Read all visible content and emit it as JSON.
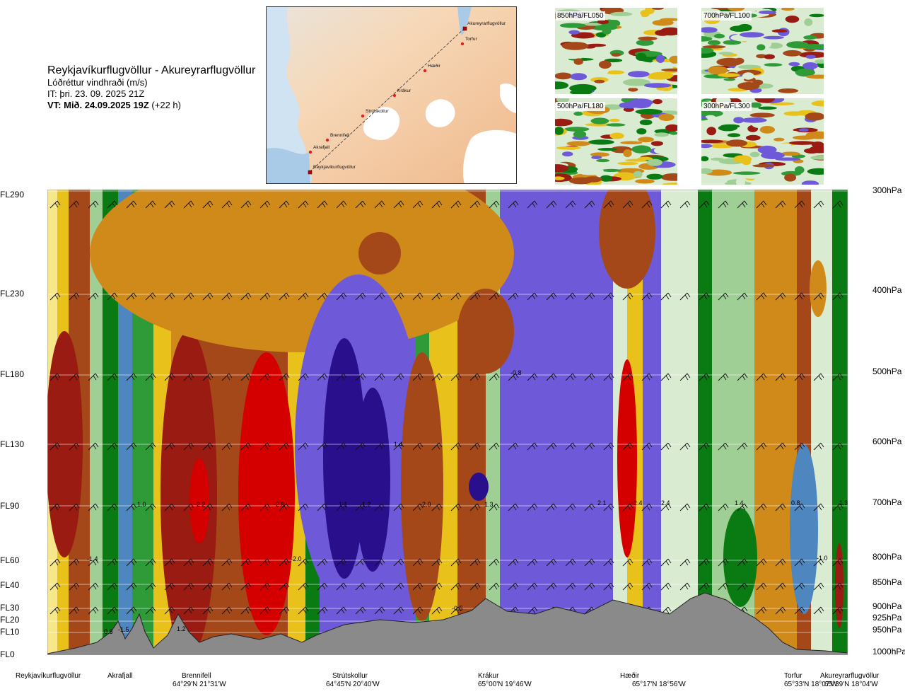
{
  "header": {
    "title": "Reykjavíkurflugvöllur - Akureyrarflugvöllur",
    "field": "Lóðréttur vindhraði (m/s)",
    "initial_time": "IT: þri. 23. 09. 2025 21Z",
    "valid_time_bold": "VT: Mið. 24.09.2025 19Z",
    "valid_time_offset": "(+22 h)"
  },
  "route_map": {
    "stations": [
      {
        "name": "Akureyrarflugvöllur",
        "kind": "airport"
      },
      {
        "name": "Torfur",
        "kind": "waypoint"
      },
      {
        "name": "Hæðir",
        "kind": "waypoint"
      },
      {
        "name": "Krákur",
        "kind": "waypoint"
      },
      {
        "name": "Strútskollur",
        "kind": "waypoint"
      },
      {
        "name": "Brennifell",
        "kind": "waypoint"
      },
      {
        "name": "Akrafjall",
        "kind": "waypoint"
      },
      {
        "name": "Reykjavíkurflugvöllur",
        "kind": "airport"
      }
    ]
  },
  "thumbnails": [
    {
      "label": "850hPa/FL050"
    },
    {
      "label": "700hPa/FL100"
    },
    {
      "label": "500hPa/FL180"
    },
    {
      "label": "300hPa/FL300"
    }
  ],
  "flight_levels": [
    "FL290",
    "FL230",
    "FL180",
    "FL130",
    "FL90",
    "FL60",
    "FL40",
    "FL30",
    "FL20",
    "FL10",
    "FL0"
  ],
  "pressure_levels": [
    "300hPa",
    "400hPa",
    "500hPa",
    "600hPa",
    "700hPa",
    "800hPa",
    "850hPa",
    "900hPa",
    "925hPa",
    "950hPa",
    "1000hPa"
  ],
  "locations": [
    {
      "name": "Reykjavíkurflugvöllur",
      "coord": ""
    },
    {
      "name": "Akrafjall",
      "coord": ""
    },
    {
      "name": "Brennifell",
      "coord": "64°29'N 21°31'W"
    },
    {
      "name": "Strútskollur",
      "coord": "64°45'N 20°40'W"
    },
    {
      "name": "Krákur",
      "coord": "65°00'N 19°46'W"
    },
    {
      "name": "Hæðir",
      "coord": "65°17'N 18°56'W"
    },
    {
      "name": "Torfur",
      "coord": "65°33'N 18°07'W"
    },
    {
      "name": "Akureyrarflugvöllur",
      "coord": "65°39'N 18°04'W"
    }
  ],
  "colors": {
    "strong_down": "#d40000",
    "down": "#9a1b12",
    "weak_down": "#a4481a",
    "light_down": "#cf8a1a",
    "slight_down": "#e8c11a",
    "neutral_down": "#f6e88a",
    "neutral": "#fdfbe0",
    "neutral_up": "#d9ecd2",
    "slight_up": "#9fcf95",
    "light_up": "#2f9a38",
    "up": "#0a7a12",
    "weak_blue": "#4e86bf",
    "blue": "#6e5ad8",
    "strong_up": "#2a0f8c",
    "terrain": "#8a8a8a"
  },
  "chart_data": {
    "type": "heatmap",
    "title": "Lóðréttur vindhraði (m/s)",
    "xlabel": "",
    "ylabel": "",
    "y_levels_fl": [
      "FL290",
      "FL230",
      "FL180",
      "FL130",
      "FL90",
      "FL60",
      "FL40",
      "FL30",
      "FL20",
      "FL10",
      "FL0"
    ],
    "y_levels_hpa": [
      300,
      400,
      500,
      600,
      700,
      800,
      850,
      900,
      925,
      950,
      1000
    ],
    "x_locations": [
      "Reykjavíkurflugvöllur",
      "Akrafjall",
      "Brennifell",
      "Strútskollur",
      "Krákur",
      "Hæðir",
      "Torfur",
      "Akureyrarflugvöllur"
    ],
    "annotations": [
      {
        "text": "-1.4",
        "near": "Akrafjall"
      },
      {
        "text": "1.0",
        "near": "Akrafjall"
      },
      {
        "text": "0.8",
        "near": "Akrafjall"
      },
      {
        "text": "-1.5",
        "near": "Akrafjall"
      },
      {
        "text": "-2.2",
        "near": "Brennifell"
      },
      {
        "text": "1.2",
        "near": "Brennifell"
      },
      {
        "text": "-2.9",
        "near": "Brennifell"
      },
      {
        "text": "-2.0",
        "near": "Brennifell"
      },
      {
        "text": "1.1",
        "near": "Strútskollur"
      },
      {
        "text": "1.2",
        "near": "Strútskollur"
      },
      {
        "text": "1.4",
        "near": "Strútskollur"
      },
      {
        "text": "-2.0",
        "near": "Strútskollur"
      },
      {
        "text": "-0.5",
        "near": "Strútskollur"
      },
      {
        "text": "1.3",
        "near": "Krákur"
      },
      {
        "text": "-0.8",
        "near": "Krákur"
      },
      {
        "text": "2.1",
        "near": "Hæðir"
      },
      {
        "text": "-2.4",
        "near": "Hæðir"
      },
      {
        "text": "2.4",
        "near": "Hæðir"
      },
      {
        "text": "1.4",
        "near": "Torfur"
      },
      {
        "text": "0.8",
        "near": "Torfur"
      },
      {
        "text": "-1.0",
        "near": "Torfur"
      },
      {
        "text": "1.3",
        "near": "Akureyrarflugvöllur"
      }
    ]
  }
}
